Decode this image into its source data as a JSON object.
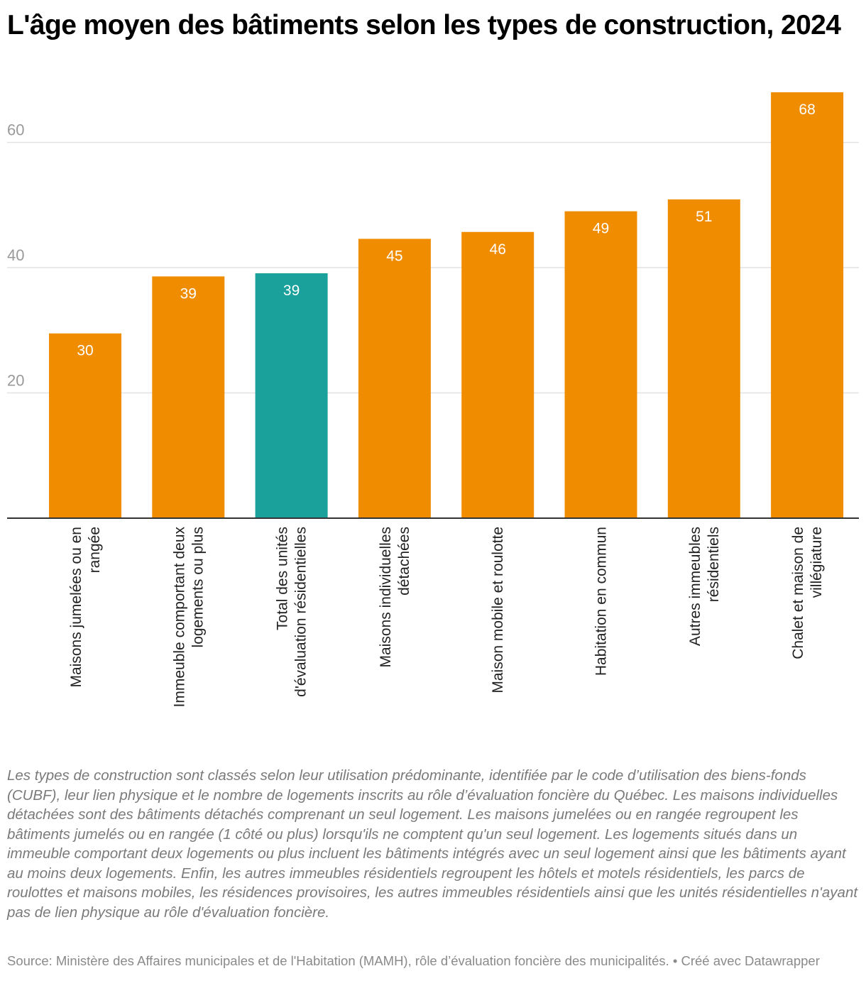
{
  "chart_data": {
    "type": "bar",
    "title": "L'âge moyen des bâtiments selon les types de construction, 2024",
    "categories": [
      "Maisons jumelées ou en rangée",
      "Immeuble comportant deux logements ou plus",
      "Total des unités d'évaluation résidentielles",
      "Maisons individuelles détachées",
      "Maison mobile et roulotte",
      "Habitation en commun",
      "Autres immeubles résidentiels",
      "Chalet et maison de villégiature"
    ],
    "category_label_lines": [
      [
        "Maisons jumelées ou en",
        "rangée"
      ],
      [
        "Immeuble comportant deux",
        "logements ou plus"
      ],
      [
        "Total des unités",
        "d'évaluation résidentielles"
      ],
      [
        "Maisons individuelles",
        "détachées"
      ],
      [
        "Maison mobile et roulotte"
      ],
      [
        "Habitation en commun"
      ],
      [
        "Autres immeubles",
        "résidentiels"
      ],
      [
        "Chalet et maison de",
        "villégiature"
      ]
    ],
    "values": [
      29.5,
      38.6,
      39.1,
      44.6,
      45.7,
      49.0,
      50.9,
      68.0
    ],
    "value_labels": [
      "30",
      "39",
      "39",
      "45",
      "46",
      "49",
      "51",
      "68"
    ],
    "highlight_index": 2,
    "colors": {
      "bar": "#ef8c00",
      "highlight": "#1aa19c"
    },
    "xlabel": "",
    "ylabel": "",
    "yticks": [
      20,
      40,
      60
    ],
    "ylim": [
      0,
      68
    ],
    "grid": true
  },
  "notes": "Les types de construction sont classés selon leur utilisation prédominante, identifiée par le code d’utilisation des biens-fonds (CUBF), leur lien physique et le nombre de logements inscrits au rôle d’évaluation foncière du Québec. Les maisons individuelles détachées sont des bâtiments détachés comprenant un seul logement. Les maisons jumelées ou en rangée regroupent les bâtiments jumelés ou en rangée (1 côté ou plus) lorsqu'ils ne comptent qu'un seul logement. Les logements situés dans un immeuble comportant deux logements ou plus incluent les bâtiments intégrés avec un seul logement ainsi que les bâtiments ayant au moins deux logements. Enfin, les autres immeubles résidentiels regroupent les hôtels et motels résidentiels, les parcs de roulottes et maisons mobiles, les résidences provisoires, les autres immeubles résidentiels ainsi que les unités résidentielles n'ayant pas de lien physique au rôle d'évaluation foncière.",
  "source": "Source: Ministère des Affaires municipales et de l'Habitation (MAMH), rôle d’évaluation foncière des municipalités. • Créé avec Datawrapper"
}
